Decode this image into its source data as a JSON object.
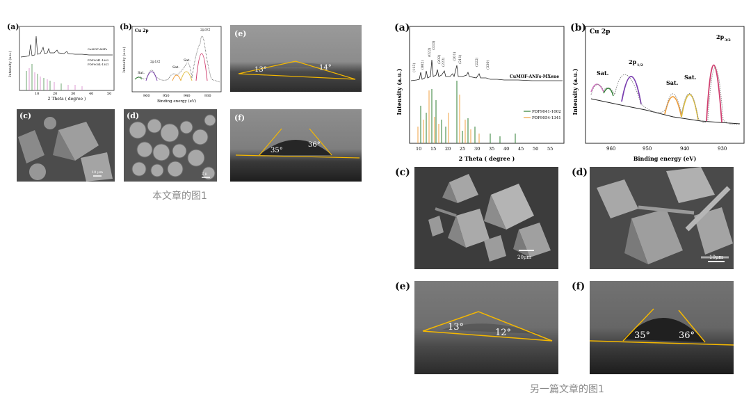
{
  "left_figure": {
    "caption": "本文章的图1",
    "panel_a": {
      "label": "(a)",
      "xlabel": "2 Theta ( degree )",
      "ylabel": "Intensity (a.u.)",
      "x_ticks": [
        "10",
        "20",
        "30",
        "40",
        "50"
      ],
      "legend": [
        "CuMOF-ANFs",
        "PDF9041-1002",
        "PDF9054-1341"
      ]
    },
    "panel_b": {
      "label": "(b)",
      "title": "Cu 2p",
      "xlabel": "Binding energy (eV)",
      "ylabel": "Intensity (a.u.)",
      "x_ticks": [
        "960",
        "950",
        "940",
        "930"
      ],
      "peaks": [
        "Sat.",
        "2p1/2",
        "Sat.",
        "Sat.",
        "2p3/2"
      ]
    },
    "panel_c": {
      "label": "(c)",
      "scale": "10 μm"
    },
    "panel_d": {
      "label": "(d)",
      "scale": "2 μ"
    },
    "panel_e": {
      "label": "(e)",
      "angle_left": "13°",
      "angle_right": "14°"
    },
    "panel_f": {
      "label": "(f)",
      "angle_left": "35°",
      "angle_right": "36°"
    }
  },
  "right_figure": {
    "caption": "另一篇文章的图1",
    "panel_a": {
      "label": "(a)",
      "xlabel": "2 Theta ( degree )",
      "ylabel": "Intensity (a.u.)",
      "x_ticks": [
        "10",
        "15",
        "20",
        "25",
        "30",
        "35",
        "40",
        "45",
        "50",
        "55"
      ],
      "sample_name": "CuMOF-ANFs-MXene",
      "legend": [
        "PDF9041-1002",
        "PDF9054-1341"
      ],
      "peak_labels": [
        "(113)",
        "(002)",
        "(022)",
        "(333)",
        "(202)",
        "(222)",
        "(201)",
        "(211)",
        "(222)",
        "(330)"
      ]
    },
    "panel_b": {
      "label": "(b)",
      "title": "Cu 2p",
      "xlabel": "Binding energy (eV)",
      "ylabel": "Intensity (a.u.)",
      "x_ticks": [
        "960",
        "950",
        "940",
        "930"
      ],
      "peaks": [
        "Sat.",
        "2p",
        "1/2",
        "Sat.",
        "Sat.",
        "2p",
        "3/2"
      ]
    },
    "panel_c": {
      "label": "(c)",
      "scale": "20μm"
    },
    "panel_d": {
      "label": "(d)",
      "scale": "10μm"
    },
    "panel_e": {
      "label": "(e)",
      "angle_left": "13°",
      "angle_right": "12°"
    },
    "panel_f": {
      "label": "(f)",
      "angle_left": "35°",
      "angle_right": "36°"
    }
  },
  "colors": {
    "green": "#2e7d32",
    "orange": "#f0a040",
    "purple": "#7b3fb0",
    "pink": "#d04070",
    "yellow_line": "#f5b800",
    "gray_photo": "#6f6f6f"
  }
}
